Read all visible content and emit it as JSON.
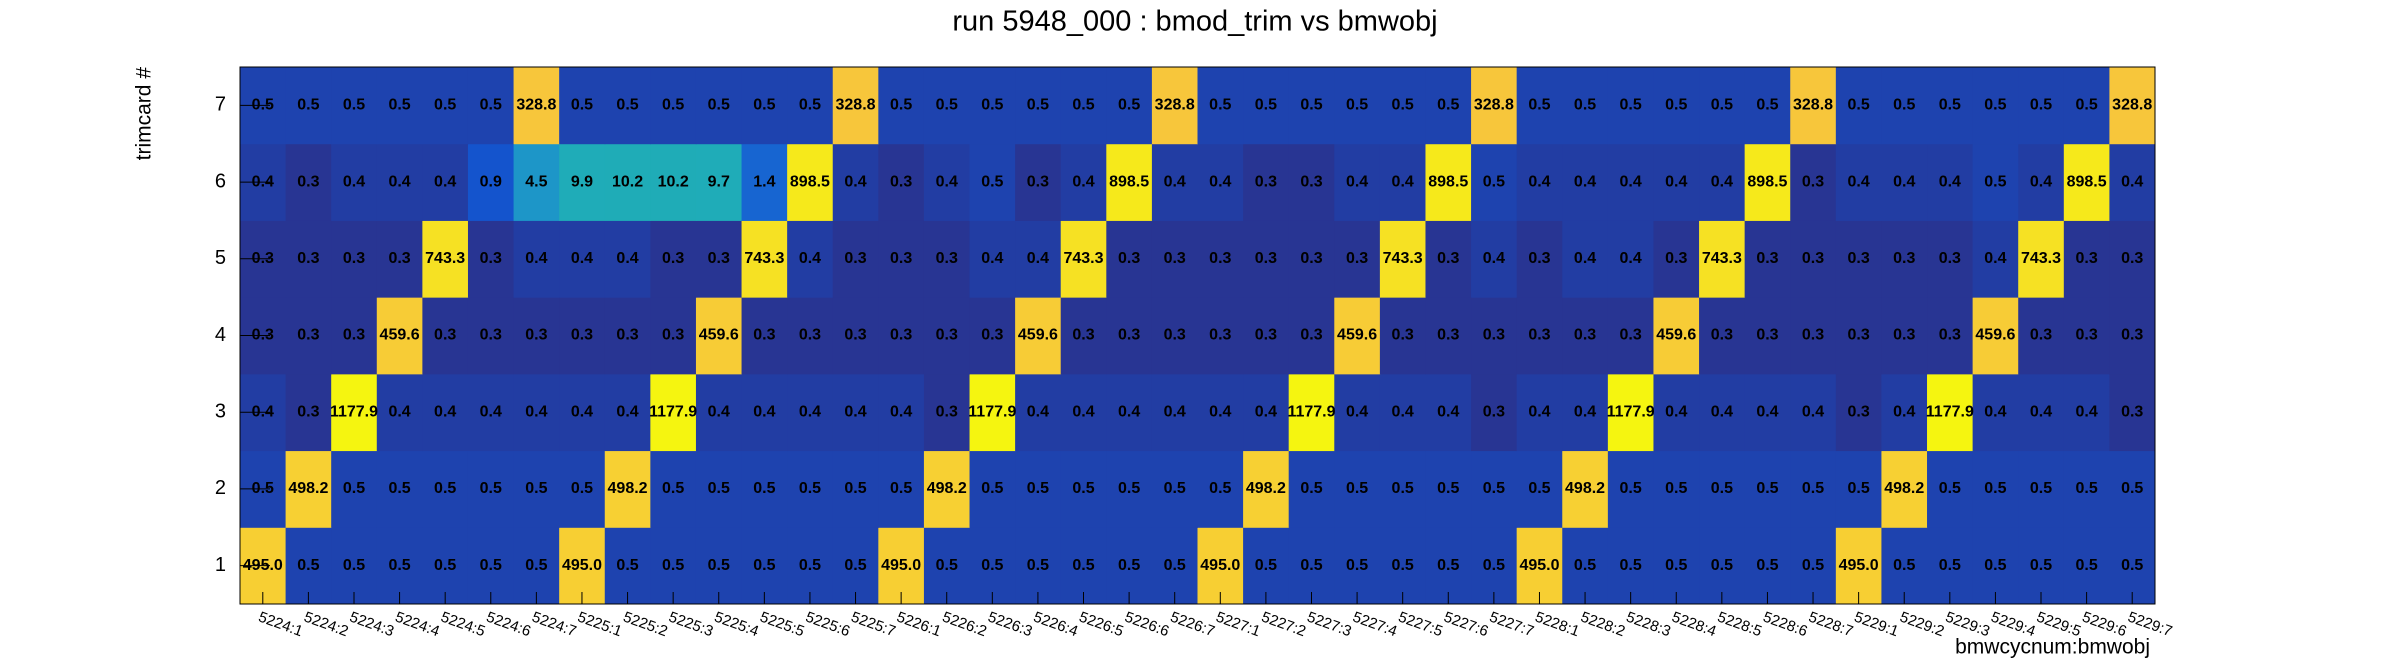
{
  "chart_data": {
    "type": "heatmap",
    "title": "run 5948_000 : bmod_trim vs bmwobj",
    "x_label": "bmwcycnum:bmwobj",
    "y_label": "trimcard #",
    "log_z": true,
    "colormap": [
      "#283593",
      "#1452cc",
      "#1a78d6",
      "#1fa8c0",
      "#20b2aa",
      "#80c060",
      "#f5c040",
      "#f7c83a",
      "#f5f510"
    ],
    "categories": [
      "5224:1",
      "5224:2",
      "5224:3",
      "5224:4",
      "5224:5",
      "5224:6",
      "5224:7",
      "5225:1",
      "5225:2",
      "5225:3",
      "5225:4",
      "5225:5",
      "5225:6",
      "5225:7",
      "5226:1",
      "5226:2",
      "5226:3",
      "5226:4",
      "5226:5",
      "5226:6",
      "5226:7",
      "5227:1",
      "5227:2",
      "5227:3",
      "5227:4",
      "5227:5",
      "5227:6",
      "5227:7",
      "5228:1",
      "5228:2",
      "5228:3",
      "5228:4",
      "5228:5",
      "5228:6",
      "5228:7",
      "5229:1",
      "5229:2",
      "5229:3",
      "5229:4",
      "5229:5",
      "5229:6",
      "5229:7"
    ],
    "y_categories": [
      1,
      2,
      3,
      4,
      5,
      6,
      7
    ],
    "values": [
      [
        495,
        0.5,
        0.5,
        0.5,
        0.5,
        0.5,
        0.5,
        495,
        0.5,
        0.5,
        0.5,
        0.5,
        0.5,
        0.5,
        495,
        0.5,
        0.5,
        0.5,
        0.5,
        0.5,
        0.5,
        495,
        0.5,
        0.5,
        0.5,
        0.5,
        0.5,
        0.5,
        495,
        0.5,
        0.5,
        0.5,
        0.5,
        0.5,
        0.5,
        495,
        0.5,
        0.5,
        0.5,
        0.5,
        0.5,
        0.5
      ],
      [
        0.5,
        498.2,
        0.5,
        0.5,
        0.5,
        0.5,
        0.5,
        0.5,
        498.2,
        0.5,
        0.5,
        0.5,
        0.5,
        0.5,
        0.5,
        498.2,
        0.5,
        0.5,
        0.5,
        0.5,
        0.5,
        0.5,
        498.2,
        0.5,
        0.5,
        0.5,
        0.5,
        0.5,
        0.5,
        498.2,
        0.5,
        0.5,
        0.5,
        0.5,
        0.5,
        0.5,
        498.2,
        0.5,
        0.5,
        0.5,
        0.5,
        0.5
      ],
      [
        0.4,
        0.3,
        1177.9,
        0.4,
        0.4,
        0.4,
        0.4,
        0.4,
        0.4,
        1177.9,
        0.4,
        0.4,
        0.4,
        0.4,
        0.4,
        0.3,
        1177.9,
        0.4,
        0.4,
        0.4,
        0.4,
        0.4,
        0.4,
        1177.9,
        0.4,
        0.4,
        0.4,
        0.3,
        0.4,
        0.4,
        1177.9,
        0.4,
        0.4,
        0.4,
        0.4,
        0.3,
        0.4,
        1177.9,
        0.4,
        0.4,
        0.4,
        0.3
      ],
      [
        0.3,
        0.3,
        0.3,
        459.6,
        0.3,
        0.3,
        0.3,
        0.3,
        0.3,
        0.3,
        459.6,
        0.3,
        0.3,
        0.3,
        0.3,
        0.3,
        0.3,
        459.6,
        0.3,
        0.3,
        0.3,
        0.3,
        0.3,
        0.3,
        459.6,
        0.3,
        0.3,
        0.3,
        0.3,
        0.3,
        0.3,
        459.6,
        0.3,
        0.3,
        0.3,
        0.3,
        0.3,
        0.3,
        459.6,
        0.3,
        0.3,
        0.3
      ],
      [
        0.3,
        0.3,
        0.3,
        0.3,
        743.3,
        0.3,
        0.4,
        0.4,
        0.4,
        0.3,
        0.3,
        743.3,
        0.4,
        0.3,
        0.3,
        0.3,
        0.4,
        0.4,
        743.3,
        0.3,
        0.3,
        0.3,
        0.3,
        0.3,
        0.3,
        743.3,
        0.3,
        0.4,
        0.3,
        0.4,
        0.4,
        0.3,
        743.3,
        0.3,
        0.3,
        0.3,
        0.3,
        0.3,
        0.4,
        743.3,
        0.3,
        0.3
      ],
      [
        0.4,
        0.3,
        0.4,
        0.4,
        0.4,
        0.9,
        4.5,
        9.9,
        10.2,
        10.2,
        9.7,
        1.4,
        898.5,
        0.4,
        0.3,
        0.4,
        0.5,
        0.3,
        0.4,
        898.5,
        0.4,
        0.4,
        0.3,
        0.3,
        0.4,
        0.4,
        898.5,
        0.5,
        0.4,
        0.4,
        0.4,
        0.4,
        0.4,
        898.5,
        0.3,
        0.4,
        0.4,
        0.4,
        0.5,
        0.4,
        898.5,
        0.4
      ],
      [
        0.5,
        0.5,
        0.5,
        0.5,
        0.5,
        0.5,
        328.8,
        0.5,
        0.5,
        0.5,
        0.5,
        0.5,
        0.5,
        328.8,
        0.5,
        0.5,
        0.5,
        0.5,
        0.5,
        0.5,
        328.8,
        0.5,
        0.5,
        0.5,
        0.5,
        0.5,
        0.5,
        328.8,
        0.5,
        0.5,
        0.5,
        0.5,
        0.5,
        0.5,
        328.8,
        0.5,
        0.5,
        0.5,
        0.5,
        0.5,
        0.5,
        328.8
      ]
    ],
    "value_labels": [
      [
        "495.0",
        "0.5",
        "0.5",
        "0.5",
        "0.5",
        "0.5",
        "0.5",
        "495.0",
        "0.5",
        "0.5",
        "0.5",
        "0.5",
        "0.5",
        "0.5",
        "495.0",
        "0.5",
        "0.5",
        "0.5",
        "0.5",
        "0.5",
        "0.5",
        "495.0",
        "0.5",
        "0.5",
        "0.5",
        "0.5",
        "0.5",
        "0.5",
        "495.0",
        "0.5",
        "0.5",
        "0.5",
        "0.5",
        "0.5",
        "0.5",
        "495.0",
        "0.5",
        "0.5",
        "0.5",
        "0.5",
        "0.5",
        "0.5"
      ],
      [
        "0.5",
        "498.2",
        "0.5",
        "0.5",
        "0.5",
        "0.5",
        "0.5",
        "0.5",
        "498.2",
        "0.5",
        "0.5",
        "0.5",
        "0.5",
        "0.5",
        "0.5",
        "498.2",
        "0.5",
        "0.5",
        "0.5",
        "0.5",
        "0.5",
        "0.5",
        "498.2",
        "0.5",
        "0.5",
        "0.5",
        "0.5",
        "0.5",
        "0.5",
        "498.2",
        "0.5",
        "0.5",
        "0.5",
        "0.5",
        "0.5",
        "0.5",
        "498.2",
        "0.5",
        "0.5",
        "0.5",
        "0.5",
        "0.5"
      ],
      [
        "0.4",
        "0.3",
        "1177.9",
        "0.4",
        "0.4",
        "0.4",
        "0.4",
        "0.4",
        "0.4",
        "1177.9",
        "0.4",
        "0.4",
        "0.4",
        "0.4",
        "0.4",
        "0.3",
        "1177.9",
        "0.4",
        "0.4",
        "0.4",
        "0.4",
        "0.4",
        "0.4",
        "1177.9",
        "0.4",
        "0.4",
        "0.4",
        "0.3",
        "0.4",
        "0.4",
        "1177.9",
        "0.4",
        "0.4",
        "0.4",
        "0.4",
        "0.3",
        "0.4",
        "1177.9",
        "0.4",
        "0.4",
        "0.4",
        "0.3"
      ],
      [
        "0.3",
        "0.3",
        "0.3",
        "459.6",
        "0.3",
        "0.3",
        "0.3",
        "0.3",
        "0.3",
        "0.3",
        "459.6",
        "0.3",
        "0.3",
        "0.3",
        "0.3",
        "0.3",
        "0.3",
        "459.6",
        "0.3",
        "0.3",
        "0.3",
        "0.3",
        "0.3",
        "0.3",
        "459.6",
        "0.3",
        "0.3",
        "0.3",
        "0.3",
        "0.3",
        "0.3",
        "459.6",
        "0.3",
        "0.3",
        "0.3",
        "0.3",
        "0.3",
        "0.3",
        "459.6",
        "0.3",
        "0.3",
        "0.3"
      ],
      [
        "0.3",
        "0.3",
        "0.3",
        "0.3",
        "743.3",
        "0.3",
        "0.4",
        "0.4",
        "0.4",
        "0.3",
        "0.3",
        "743.3",
        "0.4",
        "0.3",
        "0.3",
        "0.3",
        "0.4",
        "0.4",
        "743.3",
        "0.3",
        "0.3",
        "0.3",
        "0.3",
        "0.3",
        "0.3",
        "743.3",
        "0.3",
        "0.4",
        "0.3",
        "0.4",
        "0.4",
        "0.3",
        "743.3",
        "0.3",
        "0.3",
        "0.3",
        "0.3",
        "0.3",
        "0.4",
        "743.3",
        "0.3",
        "0.3"
      ],
      [
        "0.4",
        "0.3",
        "0.4",
        "0.4",
        "0.4",
        "0.9",
        "4.5",
        "9.9",
        "10.2",
        "10.2",
        "9.7",
        "1.4",
        "898.5",
        "0.4",
        "0.3",
        "0.4",
        "0.5",
        "0.3",
        "0.4",
        "898.5",
        "0.4",
        "0.4",
        "0.3",
        "0.3",
        "0.4",
        "0.4",
        "898.5",
        "0.5",
        "0.4",
        "0.4",
        "0.4",
        "0.4",
        "0.4",
        "898.5",
        "0.3",
        "0.4",
        "0.4",
        "0.4",
        "0.5",
        "0.4",
        "898.5",
        "0.4"
      ],
      [
        "0.5",
        "0.5",
        "0.5",
        "0.5",
        "0.5",
        "0.5",
        "328.8",
        "0.5",
        "0.5",
        "0.5",
        "0.5",
        "0.5",
        "0.5",
        "328.8",
        "0.5",
        "0.5",
        "0.5",
        "0.5",
        "0.5",
        "0.5",
        "328.8",
        "0.5",
        "0.5",
        "0.5",
        "0.5",
        "0.5",
        "0.5",
        "328.8",
        "0.5",
        "0.5",
        "0.5",
        "0.5",
        "0.5",
        "0.5",
        "328.8",
        "0.5",
        "0.5",
        "0.5",
        "0.5",
        "0.5",
        "0.5",
        "328.8"
      ]
    ]
  }
}
